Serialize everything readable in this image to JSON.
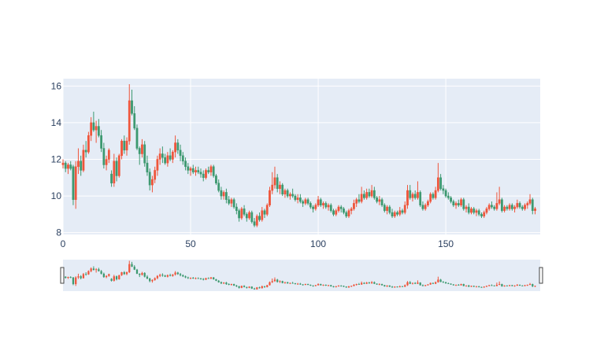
{
  "chart_data": {
    "type": "candlestick",
    "title": "",
    "xlabel": "",
    "ylabel": "",
    "xlim": [
      0,
      187
    ],
    "ylim": [
      7.9,
      16.4
    ],
    "x_ticks": [
      0,
      50,
      100,
      150
    ],
    "y_ticks": [
      8,
      10,
      12,
      14,
      16
    ],
    "grid": true,
    "range_slider": true,
    "colors": {
      "increasing": "#ef553b",
      "decreasing": "#3d9970",
      "plot_bg": "#e5ecf6",
      "grid": "#ffffff",
      "tick_text": "#2a3f5f"
    },
    "candles": [
      [
        11.7,
        12.0,
        11.5,
        11.8
      ],
      [
        11.8,
        11.9,
        11.3,
        11.5
      ],
      [
        11.5,
        11.8,
        11.2,
        11.7
      ],
      [
        11.7,
        11.9,
        11.4,
        11.5
      ],
      [
        11.6,
        11.7,
        9.5,
        9.8
      ],
      [
        9.8,
        11.9,
        9.3,
        11.6
      ],
      [
        11.6,
        12.6,
        11.2,
        11.9
      ],
      [
        11.9,
        12.2,
        11.1,
        11.4
      ],
      [
        11.4,
        12.8,
        11.3,
        12.5
      ],
      [
        12.5,
        13.0,
        12.1,
        12.4
      ],
      [
        12.4,
        13.5,
        12.3,
        13.3
      ],
      [
        13.3,
        14.3,
        13.0,
        14.0
      ],
      [
        14.0,
        14.6,
        13.5,
        13.6
      ],
      [
        13.6,
        14.1,
        12.9,
        13.8
      ],
      [
        13.8,
        14.2,
        13.2,
        13.3
      ],
      [
        13.3,
        13.6,
        12.4,
        12.6
      ],
      [
        12.6,
        12.9,
        11.5,
        11.7
      ],
      [
        11.7,
        12.2,
        11.4,
        12.0
      ],
      [
        12.0,
        12.6,
        11.8,
        12.5
      ],
      [
        11.2,
        11.4,
        10.5,
        10.7
      ],
      [
        10.7,
        12.3,
        10.5,
        11.9
      ],
      [
        11.9,
        12.1,
        10.8,
        11.1
      ],
      [
        11.1,
        12.3,
        11.0,
        12.2
      ],
      [
        12.2,
        13.1,
        12.0,
        13.0
      ],
      [
        13.0,
        13.3,
        12.3,
        12.5
      ],
      [
        12.5,
        13.2,
        12.2,
        13.0
      ],
      [
        13.0,
        16.1,
        12.8,
        15.2
      ],
      [
        15.2,
        15.8,
        14.4,
        14.5
      ],
      [
        14.5,
        14.9,
        13.6,
        13.7
      ],
      [
        13.7,
        13.9,
        12.5,
        12.6
      ],
      [
        12.6,
        12.7,
        11.7,
        12.3
      ],
      [
        12.3,
        13.1,
        12.1,
        12.8
      ],
      [
        12.8,
        13.0,
        11.6,
        11.8
      ],
      [
        11.8,
        12.2,
        11.1,
        11.3
      ],
      [
        11.3,
        11.5,
        10.3,
        10.6
      ],
      [
        10.6,
        11.1,
        10.2,
        10.9
      ],
      [
        10.9,
        11.6,
        10.7,
        11.4
      ],
      [
        11.4,
        12.2,
        11.1,
        12.0
      ],
      [
        12.0,
        12.6,
        11.7,
        12.3
      ],
      [
        12.3,
        12.7,
        11.8,
        12.1
      ],
      [
        12.1,
        12.3,
        11.7,
        11.8
      ],
      [
        11.8,
        12.4,
        11.6,
        12.2
      ],
      [
        12.2,
        12.6,
        11.9,
        12.0
      ],
      [
        12.0,
        12.5,
        11.8,
        12.4
      ],
      [
        12.4,
        13.3,
        12.1,
        12.9
      ],
      [
        12.9,
        13.1,
        12.3,
        12.5
      ],
      [
        12.5,
        12.8,
        11.9,
        12.2
      ],
      [
        12.2,
        12.4,
        11.7,
        11.9
      ],
      [
        11.9,
        12.1,
        11.4,
        11.6
      ],
      [
        11.6,
        11.8,
        11.2,
        11.4
      ],
      [
        11.4,
        11.6,
        11.1,
        11.5
      ],
      [
        11.5,
        11.7,
        11.2,
        11.3
      ],
      [
        11.3,
        11.6,
        11.1,
        11.4
      ],
      [
        11.4,
        11.6,
        11.2,
        11.3
      ],
      [
        11.3,
        11.5,
        11.0,
        11.2
      ],
      [
        11.2,
        11.4,
        10.8,
        11.0
      ],
      [
        11.0,
        11.5,
        10.9,
        11.4
      ],
      [
        11.4,
        11.6,
        11.2,
        11.3
      ],
      [
        11.3,
        11.7,
        11.1,
        11.6
      ],
      [
        11.6,
        11.7,
        11.0,
        11.1
      ],
      [
        11.1,
        11.2,
        10.6,
        10.7
      ],
      [
        10.7,
        10.9,
        10.2,
        10.3
      ],
      [
        10.3,
        10.5,
        9.8,
        10.0
      ],
      [
        10.0,
        10.3,
        9.8,
        10.2
      ],
      [
        10.2,
        10.4,
        9.6,
        9.8
      ],
      [
        9.8,
        10.0,
        9.5,
        9.6
      ],
      [
        9.6,
        9.9,
        9.4,
        9.8
      ],
      [
        9.8,
        9.9,
        9.3,
        9.4
      ],
      [
        9.4,
        9.6,
        9.0,
        9.2
      ],
      [
        9.2,
        9.3,
        8.6,
        8.8
      ],
      [
        8.8,
        9.4,
        8.7,
        9.3
      ],
      [
        9.3,
        9.5,
        8.9,
        9.0
      ],
      [
        9.0,
        9.1,
        8.6,
        8.8
      ],
      [
        8.8,
        9.2,
        8.7,
        9.1
      ],
      [
        9.1,
        9.2,
        8.5,
        8.6
      ],
      [
        8.6,
        8.8,
        8.3,
        8.4
      ],
      [
        8.4,
        9.0,
        8.3,
        8.9
      ],
      [
        8.9,
        9.1,
        8.6,
        8.7
      ],
      [
        8.7,
        9.4,
        8.6,
        9.2
      ],
      [
        9.2,
        9.3,
        8.8,
        9.0
      ],
      [
        9.0,
        9.6,
        8.9,
        9.5
      ],
      [
        9.5,
        10.5,
        9.4,
        10.3
      ],
      [
        10.3,
        11.3,
        10.1,
        10.6
      ],
      [
        10.6,
        11.6,
        10.4,
        11.0
      ],
      [
        11.0,
        11.2,
        10.2,
        10.4
      ],
      [
        10.4,
        10.8,
        10.1,
        10.6
      ],
      [
        10.6,
        10.7,
        10.0,
        10.1
      ],
      [
        10.1,
        10.4,
        9.9,
        10.3
      ],
      [
        10.3,
        10.4,
        9.9,
        10.0
      ],
      [
        10.0,
        10.2,
        9.8,
        10.1
      ],
      [
        10.1,
        10.4,
        9.9,
        10.0
      ],
      [
        10.0,
        10.1,
        9.7,
        9.8
      ],
      [
        9.8,
        10.1,
        9.6,
        9.9
      ],
      [
        9.9,
        10.1,
        9.6,
        9.7
      ],
      [
        9.7,
        9.8,
        9.4,
        9.6
      ],
      [
        9.6,
        9.9,
        9.5,
        9.8
      ],
      [
        9.8,
        9.9,
        9.5,
        9.6
      ],
      [
        9.6,
        9.7,
        9.3,
        9.4
      ],
      [
        9.4,
        9.5,
        9.1,
        9.3
      ],
      [
        9.3,
        9.6,
        9.2,
        9.5
      ],
      [
        9.5,
        10.0,
        9.4,
        9.8
      ],
      [
        9.8,
        9.9,
        9.4,
        9.5
      ],
      [
        9.5,
        9.7,
        9.3,
        9.6
      ],
      [
        9.6,
        9.7,
        9.3,
        9.4
      ],
      [
        9.4,
        9.6,
        9.2,
        9.5
      ],
      [
        9.5,
        9.6,
        9.1,
        9.2
      ],
      [
        9.2,
        9.3,
        8.9,
        9.0
      ],
      [
        9.0,
        9.3,
        8.9,
        9.2
      ],
      [
        9.2,
        9.5,
        9.1,
        9.4
      ],
      [
        9.4,
        9.5,
        9.1,
        9.3
      ],
      [
        9.3,
        9.4,
        9.0,
        9.1
      ],
      [
        9.1,
        9.2,
        8.8,
        8.9
      ],
      [
        8.9,
        9.3,
        8.8,
        9.2
      ],
      [
        9.2,
        9.4,
        9.0,
        9.3
      ],
      [
        9.3,
        9.8,
        9.2,
        9.6
      ],
      [
        9.6,
        9.9,
        9.4,
        9.8
      ],
      [
        9.8,
        10.1,
        9.6,
        9.7
      ],
      [
        9.7,
        10.5,
        9.6,
        10.1
      ],
      [
        10.1,
        10.3,
        9.8,
        9.9
      ],
      [
        9.9,
        10.4,
        9.8,
        10.2
      ],
      [
        10.2,
        10.4,
        9.9,
        10.0
      ],
      [
        10.0,
        10.6,
        9.9,
        10.3
      ],
      [
        10.3,
        10.5,
        9.8,
        9.9
      ],
      [
        9.9,
        10.0,
        9.6,
        9.7
      ],
      [
        9.7,
        10.0,
        9.5,
        9.8
      ],
      [
        9.8,
        9.9,
        9.4,
        9.5
      ],
      [
        9.5,
        9.6,
        9.1,
        9.2
      ],
      [
        9.2,
        9.5,
        9.0,
        9.4
      ],
      [
        9.4,
        9.5,
        9.0,
        9.1
      ],
      [
        9.1,
        9.3,
        8.8,
        8.9
      ],
      [
        8.9,
        9.2,
        8.8,
        9.1
      ],
      [
        9.1,
        9.2,
        8.9,
        9.0
      ],
      [
        9.0,
        9.4,
        8.9,
        9.2
      ],
      [
        9.2,
        9.3,
        9.0,
        9.1
      ],
      [
        9.1,
        9.7,
        9.0,
        9.5
      ],
      [
        9.5,
        10.6,
        9.3,
        10.3
      ],
      [
        10.3,
        10.6,
        9.8,
        9.9
      ],
      [
        9.9,
        10.2,
        9.7,
        10.1
      ],
      [
        10.1,
        10.3,
        9.8,
        9.9
      ],
      [
        9.9,
        10.8,
        9.8,
        10.2
      ],
      [
        10.2,
        10.3,
        9.4,
        9.5
      ],
      [
        9.5,
        9.7,
        9.2,
        9.3
      ],
      [
        9.3,
        9.6,
        9.2,
        9.5
      ],
      [
        9.5,
        9.8,
        9.4,
        9.7
      ],
      [
        9.7,
        10.2,
        9.6,
        10.1
      ],
      [
        10.1,
        10.2,
        9.8,
        9.9
      ],
      [
        9.9,
        10.5,
        9.8,
        10.3
      ],
      [
        10.3,
        11.8,
        10.2,
        11.0
      ],
      [
        11.0,
        11.2,
        10.3,
        10.4
      ],
      [
        10.4,
        10.6,
        10.1,
        10.3
      ],
      [
        10.3,
        10.4,
        9.9,
        10.0
      ],
      [
        10.0,
        10.2,
        9.8,
        9.9
      ],
      [
        9.9,
        10.0,
        9.6,
        9.7
      ],
      [
        9.7,
        9.8,
        9.4,
        9.5
      ],
      [
        9.5,
        9.7,
        9.3,
        9.6
      ],
      [
        9.6,
        9.8,
        9.4,
        9.5
      ],
      [
        9.5,
        9.9,
        9.4,
        9.8
      ],
      [
        9.8,
        9.9,
        9.2,
        9.3
      ],
      [
        9.3,
        9.5,
        9.1,
        9.4
      ],
      [
        9.4,
        9.6,
        9.0,
        9.1
      ],
      [
        9.1,
        9.4,
        9.0,
        9.3
      ],
      [
        9.3,
        9.4,
        9.0,
        9.1
      ],
      [
        9.1,
        9.3,
        8.9,
        9.2
      ],
      [
        9.2,
        9.3,
        8.9,
        9.0
      ],
      [
        9.0,
        9.1,
        8.8,
        8.9
      ],
      [
        8.9,
        9.2,
        8.8,
        9.1
      ],
      [
        9.1,
        9.4,
        9.0,
        9.3
      ],
      [
        9.3,
        9.6,
        9.2,
        9.5
      ],
      [
        9.5,
        9.7,
        9.3,
        9.4
      ],
      [
        9.4,
        9.5,
        9.2,
        9.3
      ],
      [
        9.3,
        10.2,
        9.2,
        9.6
      ],
      [
        9.6,
        10.5,
        9.5,
        9.8
      ],
      [
        9.8,
        9.9,
        9.1,
        9.2
      ],
      [
        9.2,
        9.5,
        9.1,
        9.4
      ],
      [
        9.4,
        9.5,
        9.2,
        9.3
      ],
      [
        9.3,
        9.6,
        9.2,
        9.5
      ],
      [
        9.5,
        9.6,
        9.2,
        9.3
      ],
      [
        9.3,
        9.5,
        9.1,
        9.4
      ],
      [
        9.4,
        9.8,
        9.3,
        9.6
      ],
      [
        9.6,
        9.7,
        9.3,
        9.4
      ],
      [
        9.4,
        9.5,
        9.2,
        9.3
      ],
      [
        9.3,
        9.6,
        9.2,
        9.5
      ],
      [
        9.5,
        9.7,
        9.3,
        9.6
      ],
      [
        9.6,
        10.1,
        9.5,
        9.8
      ],
      [
        9.8,
        9.9,
        9.0,
        9.2
      ],
      [
        9.2,
        9.4,
        9.0,
        9.3
      ]
    ]
  }
}
